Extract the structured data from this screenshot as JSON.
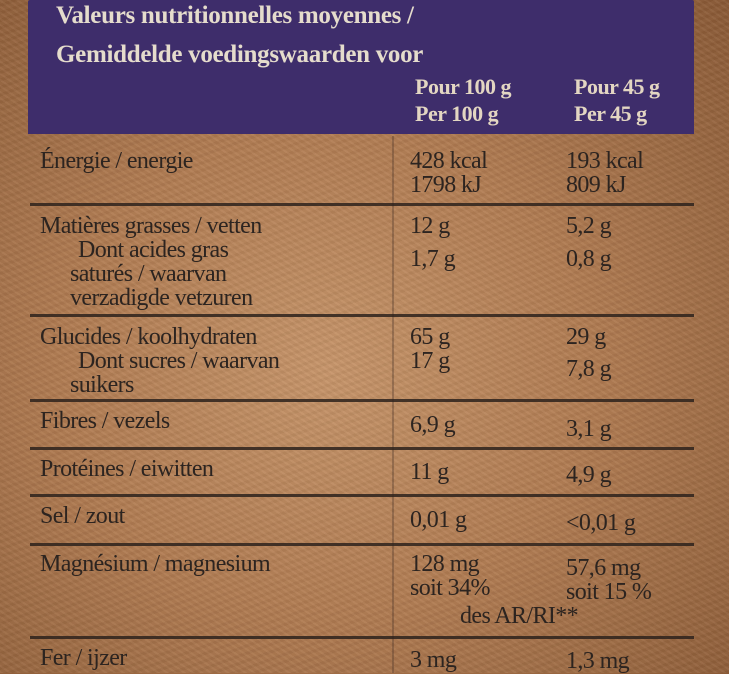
{
  "header": {
    "title_line1": "Valeurs nutritionnelles moyennes /",
    "title_line2": "Gemiddelde voedingswaarden voor",
    "col1_line1": "Pour 100 g",
    "col1_line2": "Per 100 g",
    "col2_line1": "Pour 45 g",
    "col2_line2": "Per 45 g"
  },
  "rows": {
    "energy": {
      "label": "Énergie / energie",
      "v1a": "428 kcal",
      "v1b": "1798 kJ",
      "v2a": "193 kcal",
      "v2b": "809 kJ"
    },
    "fat": {
      "label": "Matières grasses / vetten",
      "v1": "12 g",
      "v2": "5,2 g"
    },
    "saturated": {
      "line1": "Dont acides gras",
      "line2": "saturés / waarvan",
      "line3": "verzadigde vetzuren",
      "v1": "1,7 g",
      "v2": "0,8 g"
    },
    "carbs": {
      "label": "Glucides / koolhydraten",
      "v1": "65 g",
      "v2": "29 g"
    },
    "sugars": {
      "line1": "Dont sucres / waarvan",
      "line2": "suikers",
      "v1": "17 g",
      "v2": "7,8 g"
    },
    "fibre": {
      "label": "Fibres / vezels",
      "v1": "6,9 g",
      "v2": "3,1 g"
    },
    "protein": {
      "label": "Protéines / eiwitten",
      "v1": "11 g",
      "v2": "4,9 g"
    },
    "salt": {
      "label": "Sel / zout",
      "v1": "0,01 g",
      "v2": "<0,01 g"
    },
    "magnesium": {
      "label": "Magnésium / magnesium",
      "v1a": "128 mg",
      "v1b": "soit 34%",
      "v2a": "57,6 mg",
      "v2b": "soit 15 %",
      "note": "des AR/RI**"
    },
    "iron": {
      "label": "Fer / ijzer",
      "v1": "3 mg",
      "v2": "1,3 mg"
    }
  }
}
